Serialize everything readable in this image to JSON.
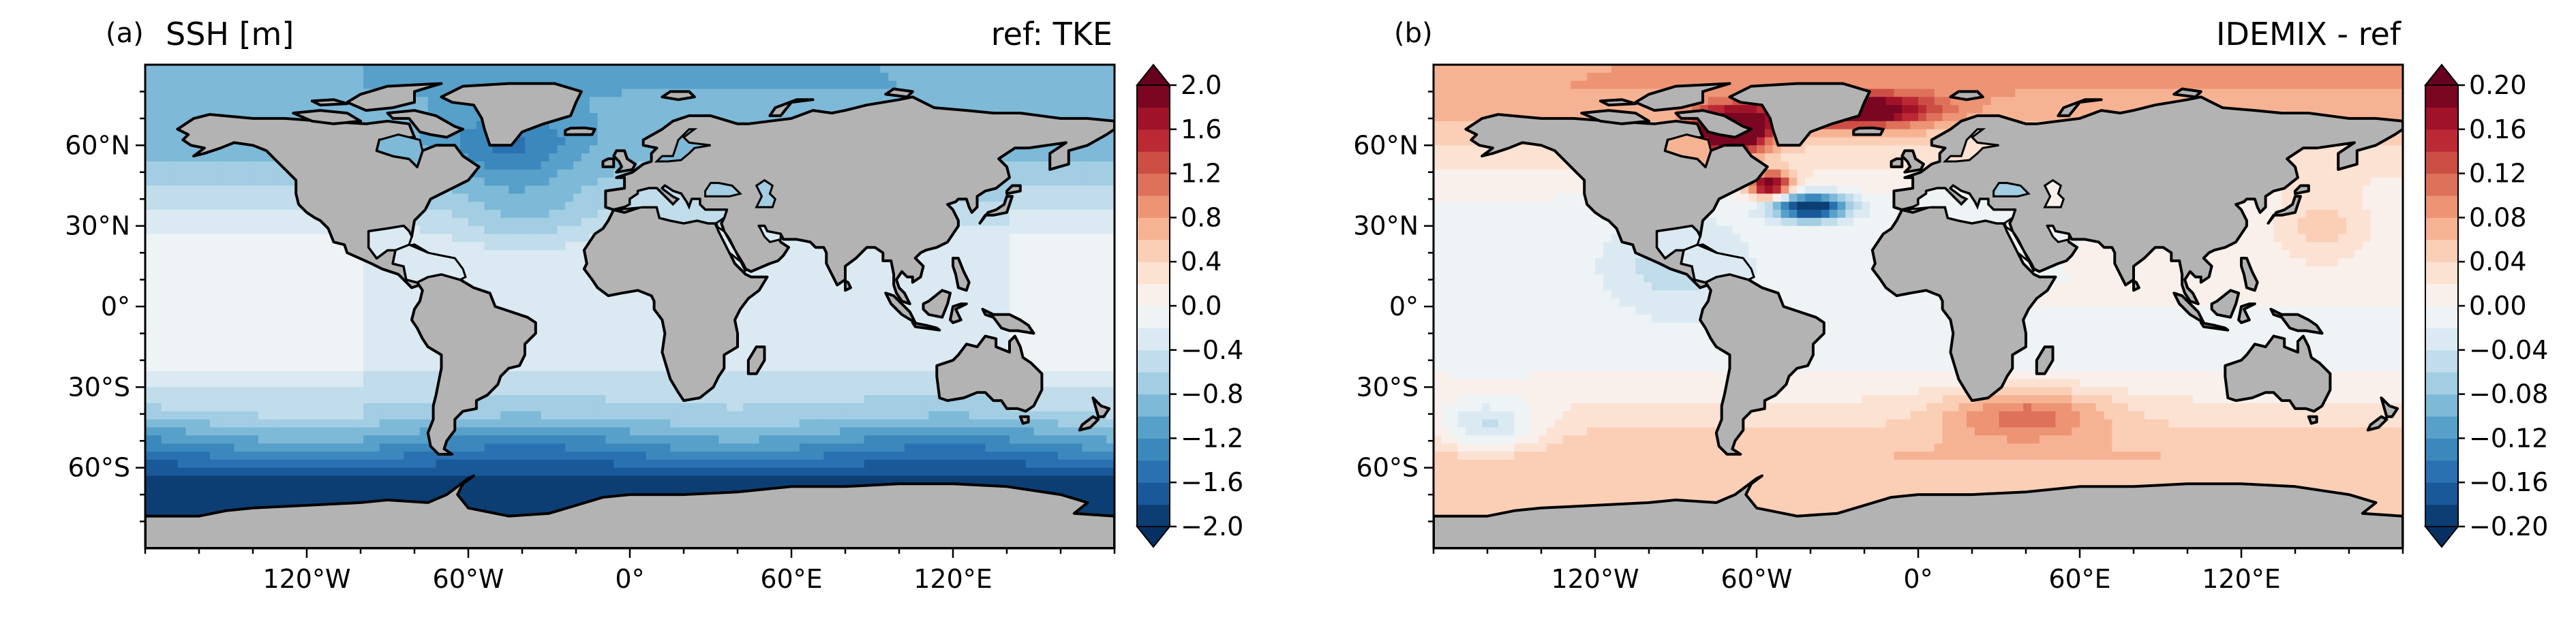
{
  "chart_data": [
    {
      "type": "heatmap",
      "panel_label": "(a)",
      "title_left": "SSH [m]",
      "title_right": "ref: TKE",
      "xlabel": "",
      "ylabel": "",
      "x_ticks": [
        "120°W",
        "60°W",
        "0°",
        "60°E",
        "120°E"
      ],
      "x_tick_values": [
        -120,
        -60,
        0,
        60,
        120
      ],
      "y_ticks": [
        "60°N",
        "30°N",
        "0°",
        "30°S",
        "60°S"
      ],
      "y_tick_values": [
        60,
        30,
        0,
        -30,
        -60
      ],
      "xlim": [
        -180,
        180
      ],
      "ylim": [
        -90,
        90
      ],
      "colorbar": {
        "colormap": "RdBu_r",
        "extend": "both",
        "ticks": [
          "2.0",
          "1.6",
          "1.2",
          "0.8",
          "0.4",
          "0.0",
          "−0.4",
          "−0.8",
          "−1.2",
          "−1.6",
          "−2.0"
        ],
        "tick_values": [
          2.0,
          1.6,
          1.2,
          0.8,
          0.4,
          0.0,
          -0.4,
          -0.8,
          -1.2,
          -1.6,
          -2.0
        ],
        "range": [
          -2.0,
          2.0
        ],
        "levels": 20
      },
      "zonal_mean_profile": [
        {
          "lat": 80,
          "value": -1.0
        },
        {
          "lat": 60,
          "value": -0.9
        },
        {
          "lat": 40,
          "value": -0.6
        },
        {
          "lat": 20,
          "value": -0.2
        },
        {
          "lat": 0,
          "value": -0.3
        },
        {
          "lat": -20,
          "value": -0.3
        },
        {
          "lat": -40,
          "value": -0.7
        },
        {
          "lat": -55,
          "value": -1.4
        },
        {
          "lat": -65,
          "value": -1.9
        }
      ]
    },
    {
      "type": "heatmap",
      "panel_label": "(b)",
      "title_left": "",
      "title_right": "IDEMIX - ref",
      "xlabel": "",
      "ylabel": "",
      "x_ticks": [
        "120°W",
        "60°W",
        "0°",
        "60°E",
        "120°E"
      ],
      "x_tick_values": [
        -120,
        -60,
        0,
        60,
        120
      ],
      "y_ticks": [
        "60°N",
        "30°N",
        "0°",
        "30°S",
        "60°S"
      ],
      "y_tick_values": [
        60,
        30,
        0,
        -30,
        -60
      ],
      "xlim": [
        -180,
        180
      ],
      "ylim": [
        -90,
        90
      ],
      "colorbar": {
        "colormap": "RdBu_r",
        "extend": "both",
        "ticks": [
          "0.20",
          "0.16",
          "0.12",
          "0.08",
          "0.04",
          "0.00",
          "−0.04",
          "−0.08",
          "−0.12",
          "−0.16",
          "−0.20"
        ],
        "tick_values": [
          0.2,
          0.16,
          0.12,
          0.08,
          0.04,
          0.0,
          -0.04,
          -0.08,
          -0.12,
          -0.16,
          -0.2
        ],
        "range": [
          -0.2,
          0.2
        ],
        "levels": 20
      },
      "zonal_mean_profile": [
        {
          "lat": 80,
          "value": 0.08
        },
        {
          "lat": 60,
          "value": 0.04
        },
        {
          "lat": 40,
          "value": 0.0
        },
        {
          "lat": 20,
          "value": 0.0
        },
        {
          "lat": 0,
          "value": 0.0
        },
        {
          "lat": -20,
          "value": -0.01
        },
        {
          "lat": -40,
          "value": 0.03
        },
        {
          "lat": -55,
          "value": 0.06
        },
        {
          "lat": -65,
          "value": 0.05
        }
      ]
    }
  ],
  "colors": {
    "land": "#b3b3b3",
    "coast": "#000000",
    "rdbu": [
      "#053061",
      "#2166ac",
      "#4393c3",
      "#92c5de",
      "#d1e5f0",
      "#f7f7f7",
      "#fddbc7",
      "#f4a582",
      "#d6604d",
      "#b2182b",
      "#67001f"
    ]
  }
}
